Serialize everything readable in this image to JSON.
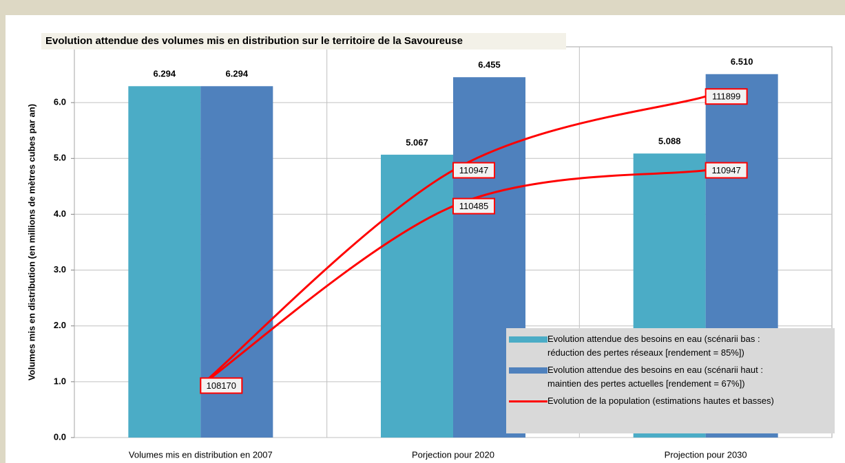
{
  "chart_data": {
    "type": "bar",
    "title": "Evolution attendue des volumes mis en distribution sur le territoire de la Savoureuse",
    "y_label": "Volumes mis en distribution (en millions de mètres cubes par an)",
    "categories": [
      "Volumes mis en distribution en 2007",
      "Porjection pour 2020",
      "Projection pour 2030"
    ],
    "series": [
      {
        "name": "Evolution attendue des besoins en eau (scénarii bas :\nréduction des pertes réseaux [rendement = 85%])",
        "type": "bar",
        "color": "#4bacc6",
        "values": [
          6.294,
          5.067,
          5.088
        ],
        "value_labels": [
          "6.294",
          "5.067",
          "5.088"
        ]
      },
      {
        "name": "Evolution attendue des besoins en eau (scénarii haut :\nmaintien des pertes actuelles  [rendement = 67%])",
        "type": "bar",
        "color": "#4f81bd",
        "values": [
          6.294,
          6.455,
          6.51
        ],
        "value_labels": [
          "6.294",
          "6.455",
          "6.510"
        ]
      },
      {
        "name": "Evolution de la population (estimations hautes et basses)",
        "type": "line",
        "axis": "y2",
        "color": "#ff0000",
        "values": [
          108170,
          110947,
          111899
        ]
      },
      {
        "type": "line",
        "axis": "y2",
        "color": "#ff0000",
        "values": [
          108170,
          110485,
          110947
        ]
      }
    ],
    "ylim": [
      0,
      7
    ],
    "yticks": [
      {
        "value": 0,
        "label": "0.0"
      },
      {
        "value": 1,
        "label": "1.0"
      },
      {
        "value": 2,
        "label": "2.0"
      },
      {
        "value": 3,
        "label": "3.0"
      },
      {
        "value": 4,
        "label": "4.0"
      },
      {
        "value": 5,
        "label": "5.0"
      },
      {
        "value": 6,
        "label": "6.0"
      }
    ],
    "y2lim": [
      107500,
      112540
    ],
    "grid": true
  }
}
